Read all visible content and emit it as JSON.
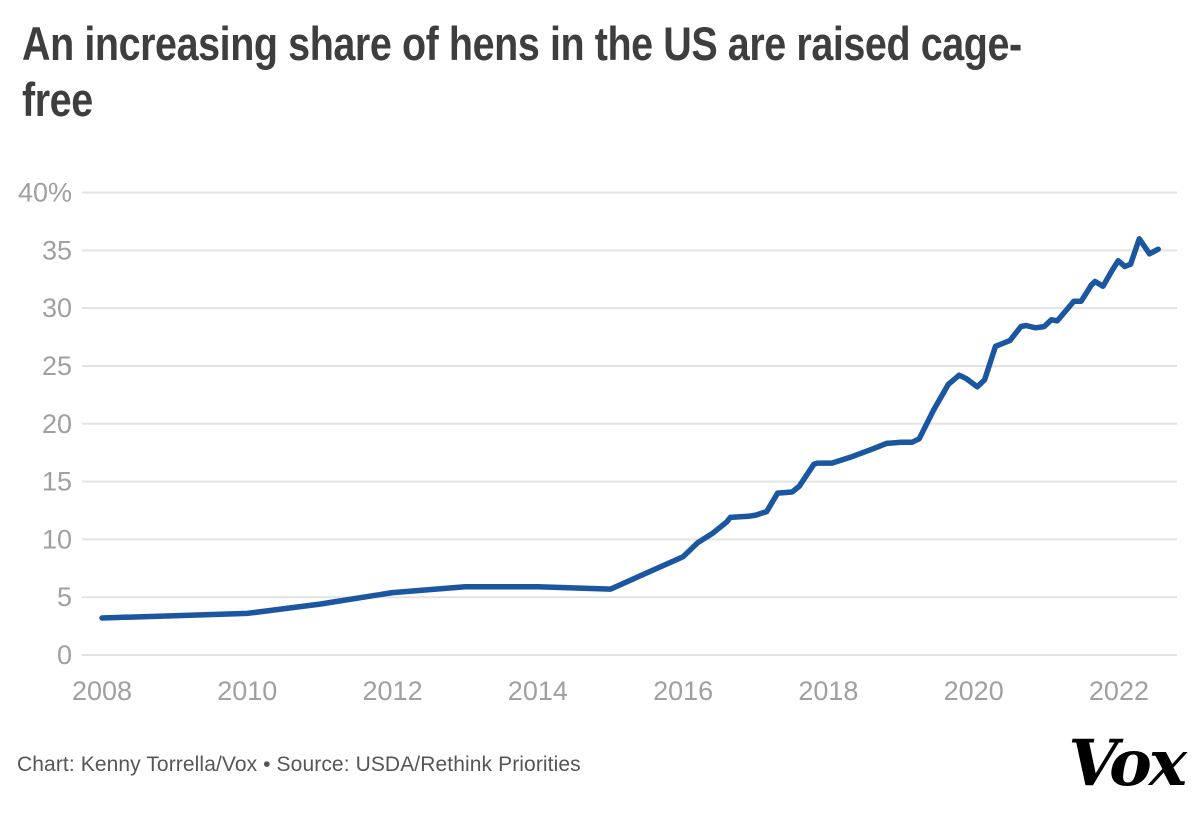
{
  "header": {
    "title": "An increasing share of hens in the US are raised cage-free",
    "title_lines": [
      "An increasing share of hens in the US are raised cage-",
      "free"
    ]
  },
  "chart_data": {
    "type": "line",
    "title": "An increasing share of hens in the US are raised cage-free",
    "xlabel": "",
    "ylabel": "",
    "x_range": [
      2008,
      2022.8
    ],
    "ylim": [
      0,
      40
    ],
    "grid": true,
    "legend": false,
    "line_color": "#1a57a0",
    "y_ticks": [
      {
        "label": "40%",
        "value": 40
      },
      {
        "label": "35",
        "value": 35
      },
      {
        "label": "30",
        "value": 30
      },
      {
        "label": "25",
        "value": 25
      },
      {
        "label": "20",
        "value": 20
      },
      {
        "label": "15",
        "value": 15
      },
      {
        "label": "10",
        "value": 10
      },
      {
        "label": "5",
        "value": 5
      },
      {
        "label": "0",
        "value": 0
      }
    ],
    "x_ticks": [
      {
        "label": "2008",
        "value": 2008
      },
      {
        "label": "2010",
        "value": 2010
      },
      {
        "label": "2012",
        "value": 2012
      },
      {
        "label": "2014",
        "value": 2014
      },
      {
        "label": "2016",
        "value": 2016
      },
      {
        "label": "2018",
        "value": 2018
      },
      {
        "label": "2020",
        "value": 2020
      },
      {
        "label": "2022",
        "value": 2022
      }
    ],
    "series": [
      {
        "name": "Share of US hens raised cage-free (%)",
        "points": [
          [
            2008,
            3.2
          ],
          [
            2009,
            3.4
          ],
          [
            2010,
            3.6
          ],
          [
            2011,
            4.4
          ],
          [
            2012,
            5.4
          ],
          [
            2013,
            5.9
          ],
          [
            2014,
            5.9
          ],
          [
            2015,
            5.7
          ],
          [
            2016.0,
            8.5
          ],
          [
            2016.2,
            9.7
          ],
          [
            2016.4,
            10.5
          ],
          [
            2016.6,
            11.5
          ],
          [
            2016.65,
            11.9
          ],
          [
            2016.9,
            12.0
          ],
          [
            2017.0,
            12.1
          ],
          [
            2017.15,
            12.4
          ],
          [
            2017.3,
            14.0
          ],
          [
            2017.5,
            14.1
          ],
          [
            2017.6,
            14.6
          ],
          [
            2017.8,
            16.5
          ],
          [
            2017.85,
            16.6
          ],
          [
            2018.05,
            16.6
          ],
          [
            2018.3,
            17.1
          ],
          [
            2018.6,
            17.8
          ],
          [
            2018.8,
            18.3
          ],
          [
            2019.0,
            18.4
          ],
          [
            2019.15,
            18.4
          ],
          [
            2019.25,
            18.7
          ],
          [
            2019.45,
            21.2
          ],
          [
            2019.65,
            23.4
          ],
          [
            2019.8,
            24.2
          ],
          [
            2019.9,
            23.9
          ],
          [
            2020.05,
            23.2
          ],
          [
            2020.15,
            23.8
          ],
          [
            2020.3,
            26.7
          ],
          [
            2020.5,
            27.2
          ],
          [
            2020.65,
            28.4
          ],
          [
            2020.72,
            28.5
          ],
          [
            2020.85,
            28.3
          ],
          [
            2020.97,
            28.4
          ],
          [
            2021.07,
            29.0
          ],
          [
            2021.15,
            28.9
          ],
          [
            2021.3,
            30.0
          ],
          [
            2021.38,
            30.6
          ],
          [
            2021.48,
            30.6
          ],
          [
            2021.62,
            32.0
          ],
          [
            2021.67,
            32.3
          ],
          [
            2021.78,
            31.9
          ],
          [
            2021.9,
            33.2
          ],
          [
            2021.99,
            34.1
          ],
          [
            2022.08,
            33.6
          ],
          [
            2022.16,
            33.8
          ],
          [
            2022.28,
            36.0
          ],
          [
            2022.42,
            34.7
          ],
          [
            2022.54,
            35.1
          ]
        ]
      }
    ]
  },
  "footer": {
    "credit": "Chart: Kenny Torrella/Vox • Source: USDA/Rethink Priorities",
    "logo_text": "Vox"
  },
  "colors": {
    "accent_line": "#1a57a0",
    "grid": "#e3e3e3",
    "axis_text": "#a0a0a0",
    "title_text": "#3e3e3e",
    "credit_text": "#565656",
    "logo": "#000000",
    "background": "#ffffff"
  }
}
